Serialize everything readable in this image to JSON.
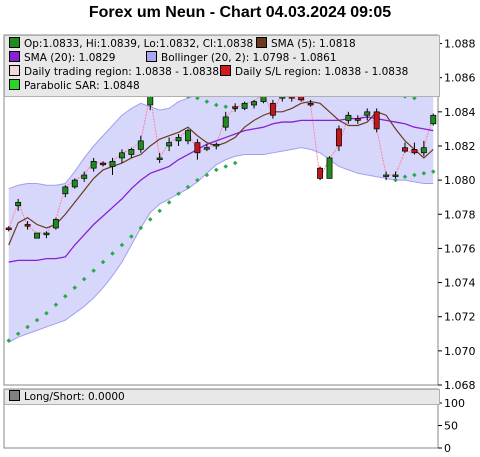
{
  "title": "Forex um Neun - Chart 04.03.2024 09:05",
  "legend": [
    {
      "label": "Op:1.0833, Hi:1.0839, Lo:1.0832, Cl:1.0838",
      "color": "#1e8c1e"
    },
    {
      "label": "SMA (5): 1.0818",
      "color": "#6b3a1f"
    },
    {
      "label": "SMA (20): 1.0829",
      "color": "#8a1fd6"
    },
    {
      "label": "Bollinger (20, 2): 1.0798 - 1.0861",
      "color": "#a9a9f2"
    },
    {
      "label": "Daily trading region: 1.0838 - 1.0838",
      "color": "#f4d9d9"
    },
    {
      "label": "Daily S/L region: 1.0838 - 1.0838",
      "color": "#d11b1b"
    },
    {
      "label": "Parabolic SAR: 1.0848",
      "color": "#2ad42a"
    }
  ],
  "sub_legend": {
    "label": "Long/Short: 0.0000",
    "color": "#808080"
  },
  "colors": {
    "up": "#1e8c1e",
    "down": "#c01818",
    "sma5": "#6b3a1f",
    "sma20": "#8a1fd6",
    "band": "#d0d0fb",
    "band_line": "#a0a0ee",
    "sar": "#2aa84a",
    "close": "#ff80a0"
  },
  "chart_data": [
    {
      "type": "candlestick",
      "ylim": [
        1.068,
        1.0885
      ],
      "ytick_labels": [
        "1.068",
        "1.070",
        "1.072",
        "1.074",
        "1.076",
        "1.078",
        "1.080",
        "1.082",
        "1.084",
        "1.086",
        "1.088"
      ],
      "candles": [
        {
          "o": 1.0772,
          "h": 1.0773,
          "l": 1.077,
          "c": 1.0771
        },
        {
          "o": 1.0785,
          "h": 1.0789,
          "l": 1.0782,
          "c": 1.0787
        },
        {
          "o": 1.0774,
          "h": 1.0776,
          "l": 1.0771,
          "c": 1.0773
        },
        {
          "o": 1.0766,
          "h": 1.0769,
          "l": 1.0766,
          "c": 1.0769
        },
        {
          "o": 1.0768,
          "h": 1.077,
          "l": 1.0766,
          "c": 1.0769
        },
        {
          "o": 1.0772,
          "h": 1.0778,
          "l": 1.0771,
          "c": 1.0777
        },
        {
          "o": 1.0792,
          "h": 1.0797,
          "l": 1.079,
          "c": 1.0796
        },
        {
          "o": 1.0796,
          "h": 1.0801,
          "l": 1.0795,
          "c": 1.08
        },
        {
          "o": 1.0801,
          "h": 1.0805,
          "l": 1.0799,
          "c": 1.0803
        },
        {
          "o": 1.0807,
          "h": 1.0813,
          "l": 1.0805,
          "c": 1.0811
        },
        {
          "o": 1.081,
          "h": 1.0811,
          "l": 1.0808,
          "c": 1.0809
        },
        {
          "o": 1.0808,
          "h": 1.0813,
          "l": 1.0803,
          "c": 1.0811
        },
        {
          "o": 1.0813,
          "h": 1.0818,
          "l": 1.081,
          "c": 1.0816
        },
        {
          "o": 1.0815,
          "h": 1.0819,
          "l": 1.0813,
          "c": 1.0818
        },
        {
          "o": 1.0818,
          "h": 1.0826,
          "l": 1.0816,
          "c": 1.0823
        },
        {
          "o": 1.0844,
          "h": 1.085,
          "l": 1.0841,
          "c": 1.085
        },
        {
          "o": 1.0812,
          "h": 1.0816,
          "l": 1.081,
          "c": 1.0813
        },
        {
          "o": 1.082,
          "h": 1.0825,
          "l": 1.0817,
          "c": 1.0822
        },
        {
          "o": 1.0823,
          "h": 1.0827,
          "l": 1.082,
          "c": 1.0825
        },
        {
          "o": 1.0823,
          "h": 1.083,
          "l": 1.0821,
          "c": 1.0829
        },
        {
          "o": 1.0822,
          "h": 1.0824,
          "l": 1.0812,
          "c": 1.0816
        },
        {
          "o": 1.0819,
          "h": 1.0821,
          "l": 1.0817,
          "c": 1.0819
        },
        {
          "o": 1.082,
          "h": 1.0822,
          "l": 1.0818,
          "c": 1.0821
        },
        {
          "o": 1.0831,
          "h": 1.084,
          "l": 1.0829,
          "c": 1.0837
        },
        {
          "o": 1.0843,
          "h": 1.0845,
          "l": 1.084,
          "c": 1.0842
        },
        {
          "o": 1.0842,
          "h": 1.0846,
          "l": 1.0841,
          "c": 1.0845
        },
        {
          "o": 1.0844,
          "h": 1.0847,
          "l": 1.0842,
          "c": 1.0846
        },
        {
          "o": 1.0846,
          "h": 1.0852,
          "l": 1.0845,
          "c": 1.0851
        },
        {
          "o": 1.0845,
          "h": 1.0847,
          "l": 1.0836,
          "c": 1.0838
        },
        {
          "o": 1.0848,
          "h": 1.0853,
          "l": 1.0846,
          "c": 1.0852
        },
        {
          "o": 1.0854,
          "h": 1.0856,
          "l": 1.0846,
          "c": 1.0848
        },
        {
          "o": 1.0849,
          "h": 1.0851,
          "l": 1.0846,
          "c": 1.0847
        },
        {
          "o": 1.0845,
          "h": 1.0847,
          "l": 1.0843,
          "c": 1.0844
        },
        {
          "o": 1.0807,
          "h": 1.0808,
          "l": 1.08,
          "c": 1.0801
        },
        {
          "o": 1.0801,
          "h": 1.0814,
          "l": 1.0801,
          "c": 1.0813
        },
        {
          "o": 1.083,
          "h": 1.0832,
          "l": 1.0817,
          "c": 1.082
        },
        {
          "o": 1.0835,
          "h": 1.084,
          "l": 1.0833,
          "c": 1.0838
        },
        {
          "o": 1.0836,
          "h": 1.0838,
          "l": 1.0833,
          "c": 1.0835
        },
        {
          "o": 1.0838,
          "h": 1.0842,
          "l": 1.0835,
          "c": 1.084
        },
        {
          "o": 1.084,
          "h": 1.0842,
          "l": 1.0828,
          "c": 1.083
        },
        {
          "o": 1.0803,
          "h": 1.0805,
          "l": 1.08,
          "c": 1.0803
        },
        {
          "o": 1.0803,
          "h": 1.0805,
          "l": 1.0801,
          "c": 1.0803
        },
        {
          "o": 1.0819,
          "h": 1.0822,
          "l": 1.0816,
          "c": 1.0817
        },
        {
          "o": 1.0818,
          "h": 1.0822,
          "l": 1.0815,
          "c": 1.0816
        },
        {
          "o": 1.0816,
          "h": 1.0823,
          "l": 1.0814,
          "c": 1.0819
        },
        {
          "o": 1.0833,
          "h": 1.0839,
          "l": 1.0832,
          "c": 1.0838
        }
      ],
      "sma5": [
        1.0762,
        1.0775,
        1.0778,
        1.0774,
        1.0772,
        1.0774,
        1.078,
        1.0787,
        1.0794,
        1.0801,
        1.0806,
        1.0808,
        1.081,
        1.0813,
        1.0815,
        1.082,
        1.0824,
        1.0826,
        1.0828,
        1.0831,
        1.0826,
        1.0822,
        1.082,
        1.0822,
        1.0825,
        1.0831,
        1.0835,
        1.0838,
        1.084,
        1.084,
        1.0842,
        1.0845,
        1.0846,
        1.0845,
        1.084,
        1.0835,
        1.0832,
        1.0832,
        1.0834,
        1.084,
        1.0838,
        1.083,
        1.0823,
        1.0818,
        1.0813,
        1.0818
      ],
      "sma20": [
        1.0752,
        1.0753,
        1.0753,
        1.0753,
        1.0754,
        1.0754,
        1.0755,
        1.0762,
        1.0768,
        1.0774,
        1.0779,
        1.0784,
        1.0789,
        1.0795,
        1.08,
        1.0804,
        1.0806,
        1.0808,
        1.0812,
        1.0815,
        1.0818,
        1.0821,
        1.0823,
        1.0825,
        1.0827,
        1.0829,
        1.083,
        1.0831,
        1.0833,
        1.0834,
        1.0834,
        1.0835,
        1.0835,
        1.0835,
        1.0835,
        1.0835,
        1.0836,
        1.0836,
        1.0837,
        1.0836,
        1.0835,
        1.0834,
        1.0833,
        1.0831,
        1.083,
        1.0829
      ],
      "bb_upper": [
        1.0795,
        1.0797,
        1.0798,
        1.0798,
        1.0797,
        1.0797,
        1.0798,
        1.0805,
        1.0813,
        1.082,
        1.0826,
        1.0832,
        1.0838,
        1.0842,
        1.0845,
        1.0843,
        1.0841,
        1.0842,
        1.0846,
        1.0848,
        1.085,
        1.0852,
        1.0853,
        1.0855,
        1.0856,
        1.0858,
        1.086,
        1.0861,
        1.0862,
        1.0863,
        1.0863,
        1.0864,
        1.0864,
        1.0866,
        1.0868,
        1.0869,
        1.0868,
        1.0867,
        1.0866,
        1.0865,
        1.0864,
        1.0865,
        1.0866,
        1.0864,
        1.0863,
        1.0861
      ],
      "bb_lower": [
        1.0705,
        1.0708,
        1.071,
        1.0712,
        1.0714,
        1.0716,
        1.0718,
        1.0722,
        1.0726,
        1.0731,
        1.0737,
        1.0744,
        1.0752,
        1.0762,
        1.0772,
        1.0781,
        1.0786,
        1.0789,
        1.0792,
        1.0795,
        1.0799,
        1.0804,
        1.0809,
        1.0812,
        1.0814,
        1.0815,
        1.0815,
        1.0815,
        1.0816,
        1.0817,
        1.0818,
        1.0819,
        1.0818,
        1.0816,
        1.0812,
        1.0808,
        1.0806,
        1.0804,
        1.0803,
        1.0802,
        1.0801,
        1.08,
        1.08,
        1.0799,
        1.0798,
        1.0798
      ],
      "sar": [
        1.0706,
        1.071,
        1.0714,
        1.0718,
        1.0722,
        1.0727,
        1.0732,
        1.0737,
        1.0742,
        1.0747,
        1.0752,
        1.0757,
        1.0762,
        1.0767,
        1.0772,
        1.0777,
        1.0782,
        1.0787,
        1.0792,
        1.0796,
        1.08,
        1.0803,
        1.0806,
        1.0808,
        1.081,
        1.0812,
        1.0813,
        1.0814,
        1.0815,
        1.0816,
        1.0817,
        1.0818,
        1.0819,
        1.082,
        1.0821,
        1.0822,
        1.0822,
        1.0823,
        1.0823,
        1.0824,
        1.0824,
        1.08,
        1.0802,
        1.0803,
        1.0804,
        1.0805
      ],
      "sar_upper": {
        "start_index": 14,
        "values": [
          1.085,
          1.0851,
          1.0851,
          1.0851,
          1.085,
          1.0849,
          1.0848,
          1.0846,
          1.0844,
          1.0843,
          1.0842
        ]
      },
      "sar_upper2": {
        "start_index": 29,
        "values": [
          1.0862,
          1.0861,
          1.086,
          1.0859,
          1.0858,
          1.0857,
          1.0856,
          1.0855,
          1.0854,
          1.0853,
          1.0852,
          1.0851,
          1.085,
          1.0849,
          1.0848
        ]
      }
    },
    {
      "type": "line",
      "ylim": [
        0,
        100
      ],
      "ytick_labels": [
        "0",
        "50",
        "100"
      ],
      "values": [
        0
      ]
    }
  ]
}
